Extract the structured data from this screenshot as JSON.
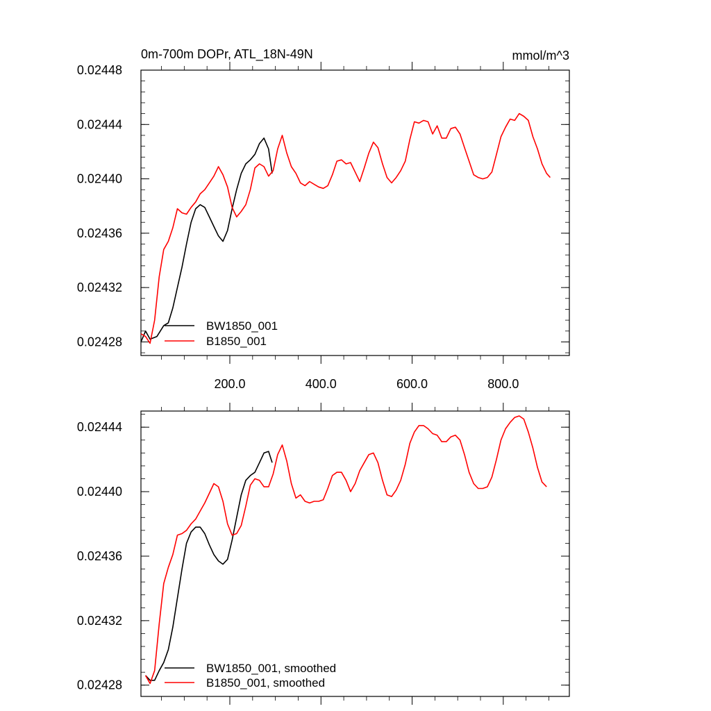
{
  "chart_data": [
    {
      "type": "line",
      "title": "0m-700m DOPr, ATL_18N-49N",
      "units": "mmol/m^3",
      "xlabel": "",
      "ylabel": "",
      "xlim": [
        5,
        945
      ],
      "ylim": [
        0.02427,
        0.02448
      ],
      "xticks": [
        200,
        400,
        600,
        800
      ],
      "xtick_labels": [
        "200.0",
        "400.0",
        "600.0",
        "800.0"
      ],
      "yticks": [
        0.02428,
        0.02432,
        0.02436,
        0.0244,
        0.02444,
        0.02448
      ],
      "ytick_labels": [
        "0.02428",
        "0.02432",
        "0.02436",
        "0.02440",
        "0.02444",
        "0.02448"
      ],
      "legend_placement": "bottom-left",
      "series": [
        {
          "name": "BW1850_001",
          "color": "#000000",
          "points": [
            [
              5,
              0.02428
            ],
            [
              15,
              0.024288
            ],
            [
              25,
              0.024282
            ],
            [
              40,
              0.024284
            ],
            [
              55,
              0.024292
            ],
            [
              65,
              0.024294
            ],
            [
              75,
              0.024305
            ],
            [
              85,
              0.02432
            ],
            [
              95,
              0.024335
            ],
            [
              105,
              0.024352
            ],
            [
              115,
              0.024368
            ],
            [
              125,
              0.024378
            ],
            [
              135,
              0.024381
            ],
            [
              145,
              0.024379
            ],
            [
              155,
              0.024372
            ],
            [
              165,
              0.024365
            ],
            [
              175,
              0.024358
            ],
            [
              185,
              0.024354
            ],
            [
              195,
              0.024362
            ],
            [
              205,
              0.024378
            ],
            [
              215,
              0.024392
            ],
            [
              225,
              0.024404
            ],
            [
              235,
              0.024411
            ],
            [
              245,
              0.024414
            ],
            [
              255,
              0.024418
            ],
            [
              265,
              0.024426
            ],
            [
              275,
              0.02443
            ],
            [
              285,
              0.024422
            ],
            [
              293,
              0.024404
            ]
          ]
        },
        {
          "name": "B1850_001",
          "color": "#ff0000",
          "points": [
            [
              5,
              0.024286
            ],
            [
              15,
              0.024284
            ],
            [
              25,
              0.024279
            ],
            [
              35,
              0.024296
            ],
            [
              45,
              0.024328
            ],
            [
              55,
              0.024348
            ],
            [
              65,
              0.024354
            ],
            [
              75,
              0.024364
            ],
            [
              85,
              0.024378
            ],
            [
              95,
              0.024375
            ],
            [
              105,
              0.024374
            ],
            [
              115,
              0.024379
            ],
            [
              125,
              0.024383
            ],
            [
              135,
              0.024389
            ],
            [
              145,
              0.024392
            ],
            [
              155,
              0.024397
            ],
            [
              165,
              0.024402
            ],
            [
              175,
              0.024409
            ],
            [
              185,
              0.024403
            ],
            [
              195,
              0.024394
            ],
            [
              205,
              0.024379
            ],
            [
              215,
              0.024372
            ],
            [
              225,
              0.024376
            ],
            [
              235,
              0.024381
            ],
            [
              245,
              0.024392
            ],
            [
              255,
              0.024408
            ],
            [
              265,
              0.024411
            ],
            [
              275,
              0.024409
            ],
            [
              285,
              0.024402
            ],
            [
              295,
              0.024406
            ],
            [
              305,
              0.024422
            ],
            [
              315,
              0.024432
            ],
            [
              325,
              0.024419
            ],
            [
              335,
              0.024409
            ],
            [
              345,
              0.024404
            ],
            [
              355,
              0.024397
            ],
            [
              365,
              0.024395
            ],
            [
              375,
              0.024398
            ],
            [
              385,
              0.024396
            ],
            [
              395,
              0.024394
            ],
            [
              405,
              0.024393
            ],
            [
              415,
              0.024395
            ],
            [
              425,
              0.024403
            ],
            [
              435,
              0.024413
            ],
            [
              445,
              0.024414
            ],
            [
              455,
              0.024411
            ],
            [
              465,
              0.024412
            ],
            [
              475,
              0.024405
            ],
            [
              485,
              0.024398
            ],
            [
              495,
              0.024408
            ],
            [
              505,
              0.024419
            ],
            [
              515,
              0.024427
            ],
            [
              525,
              0.024423
            ],
            [
              535,
              0.024411
            ],
            [
              545,
              0.024401
            ],
            [
              555,
              0.024397
            ],
            [
              565,
              0.024401
            ],
            [
              575,
              0.024406
            ],
            [
              585,
              0.024413
            ],
            [
              595,
              0.024429
            ],
            [
              605,
              0.024442
            ],
            [
              615,
              0.024441
            ],
            [
              625,
              0.024443
            ],
            [
              635,
              0.024442
            ],
            [
              645,
              0.024433
            ],
            [
              655,
              0.024439
            ],
            [
              665,
              0.02443
            ],
            [
              675,
              0.02443
            ],
            [
              685,
              0.024437
            ],
            [
              695,
              0.024438
            ],
            [
              705,
              0.024433
            ],
            [
              715,
              0.024423
            ],
            [
              725,
              0.024413
            ],
            [
              735,
              0.024403
            ],
            [
              745,
              0.024401
            ],
            [
              755,
              0.0244
            ],
            [
              765,
              0.024401
            ],
            [
              775,
              0.024405
            ],
            [
              785,
              0.024418
            ],
            [
              795,
              0.024431
            ],
            [
              805,
              0.024438
            ],
            [
              815,
              0.024444
            ],
            [
              825,
              0.024443
            ],
            [
              835,
              0.024448
            ],
            [
              845,
              0.024446
            ],
            [
              855,
              0.024443
            ],
            [
              865,
              0.024431
            ],
            [
              875,
              0.024422
            ],
            [
              885,
              0.024411
            ],
            [
              895,
              0.024404
            ],
            [
              903,
              0.024401
            ]
          ]
        }
      ]
    },
    {
      "type": "line",
      "title": "",
      "xlabel": "",
      "ylabel": "",
      "xlim": [
        5,
        945
      ],
      "ylim": [
        0.024273,
        0.02445
      ],
      "xticks": [
        200,
        400,
        600,
        800
      ],
      "xtick_labels": [],
      "yticks": [
        0.02428,
        0.02432,
        0.02436,
        0.0244,
        0.02444
      ],
      "ytick_labels": [
        "0.02428",
        "0.02432",
        "0.02436",
        "0.02440",
        "0.02444"
      ],
      "legend_placement": "bottom-left",
      "series": [
        {
          "name": "BW1850_001, smoothed",
          "color": "#000000",
          "points": [
            [
              15,
              0.024286
            ],
            [
              25,
              0.024283
            ],
            [
              35,
              0.024283
            ],
            [
              45,
              0.024289
            ],
            [
              55,
              0.024294
            ],
            [
              65,
              0.024302
            ],
            [
              75,
              0.024316
            ],
            [
              85,
              0.024334
            ],
            [
              95,
              0.024352
            ],
            [
              105,
              0.024368
            ],
            [
              115,
              0.024375
            ],
            [
              125,
              0.024378
            ],
            [
              135,
              0.024378
            ],
            [
              145,
              0.024374
            ],
            [
              155,
              0.024367
            ],
            [
              165,
              0.024361
            ],
            [
              175,
              0.024357
            ],
            [
              185,
              0.024355
            ],
            [
              195,
              0.024358
            ],
            [
              205,
              0.02437
            ],
            [
              215,
              0.024384
            ],
            [
              225,
              0.024398
            ],
            [
              235,
              0.024407
            ],
            [
              245,
              0.02441
            ],
            [
              255,
              0.024412
            ],
            [
              265,
              0.024418
            ],
            [
              275,
              0.024424
            ],
            [
              285,
              0.024425
            ],
            [
              293,
              0.024418
            ]
          ]
        },
        {
          "name": "B1850_001, smoothed",
          "color": "#ff0000",
          "points": [
            [
              15,
              0.024286
            ],
            [
              25,
              0.024281
            ],
            [
              35,
              0.024289
            ],
            [
              45,
              0.024318
            ],
            [
              55,
              0.024343
            ],
            [
              65,
              0.024353
            ],
            [
              75,
              0.024361
            ],
            [
              85,
              0.024373
            ],
            [
              95,
              0.024374
            ],
            [
              105,
              0.024376
            ],
            [
              115,
              0.02438
            ],
            [
              125,
              0.024383
            ],
            [
              135,
              0.024388
            ],
            [
              145,
              0.024393
            ],
            [
              155,
              0.024399
            ],
            [
              165,
              0.024405
            ],
            [
              175,
              0.024403
            ],
            [
              185,
              0.024394
            ],
            [
              195,
              0.02438
            ],
            [
              205,
              0.024373
            ],
            [
              215,
              0.024374
            ],
            [
              225,
              0.024379
            ],
            [
              235,
              0.024391
            ],
            [
              245,
              0.024404
            ],
            [
              255,
              0.024408
            ],
            [
              265,
              0.024407
            ],
            [
              275,
              0.024403
            ],
            [
              285,
              0.024403
            ],
            [
              295,
              0.024411
            ],
            [
              305,
              0.024423
            ],
            [
              315,
              0.024429
            ],
            [
              325,
              0.024419
            ],
            [
              335,
              0.024405
            ],
            [
              345,
              0.024396
            ],
            [
              355,
              0.024398
            ],
            [
              365,
              0.024394
            ],
            [
              375,
              0.024393
            ],
            [
              385,
              0.024394
            ],
            [
              395,
              0.024394
            ],
            [
              405,
              0.024395
            ],
            [
              415,
              0.024402
            ],
            [
              425,
              0.02441
            ],
            [
              435,
              0.024412
            ],
            [
              445,
              0.024412
            ],
            [
              455,
              0.024407
            ],
            [
              465,
              0.0244
            ],
            [
              475,
              0.024405
            ],
            [
              485,
              0.024413
            ],
            [
              495,
              0.024418
            ],
            [
              505,
              0.024423
            ],
            [
              515,
              0.024424
            ],
            [
              525,
              0.024418
            ],
            [
              535,
              0.024407
            ],
            [
              545,
              0.024398
            ],
            [
              555,
              0.024397
            ],
            [
              565,
              0.024401
            ],
            [
              575,
              0.024407
            ],
            [
              585,
              0.024417
            ],
            [
              595,
              0.02443
            ],
            [
              605,
              0.024437
            ],
            [
              615,
              0.024441
            ],
            [
              625,
              0.024441
            ],
            [
              635,
              0.024439
            ],
            [
              645,
              0.024436
            ],
            [
              655,
              0.024435
            ],
            [
              665,
              0.024431
            ],
            [
              675,
              0.024431
            ],
            [
              685,
              0.024434
            ],
            [
              695,
              0.024435
            ],
            [
              705,
              0.024432
            ],
            [
              715,
              0.024423
            ],
            [
              725,
              0.024412
            ],
            [
              735,
              0.024405
            ],
            [
              745,
              0.024402
            ],
            [
              755,
              0.024402
            ],
            [
              765,
              0.024403
            ],
            [
              775,
              0.024409
            ],
            [
              785,
              0.02442
            ],
            [
              795,
              0.024432
            ],
            [
              805,
              0.024439
            ],
            [
              815,
              0.024443
            ],
            [
              825,
              0.024446
            ],
            [
              835,
              0.024447
            ],
            [
              845,
              0.024445
            ],
            [
              855,
              0.024437
            ],
            [
              865,
              0.024427
            ],
            [
              875,
              0.024415
            ],
            [
              885,
              0.024406
            ],
            [
              895,
              0.024403
            ]
          ]
        }
      ]
    }
  ]
}
